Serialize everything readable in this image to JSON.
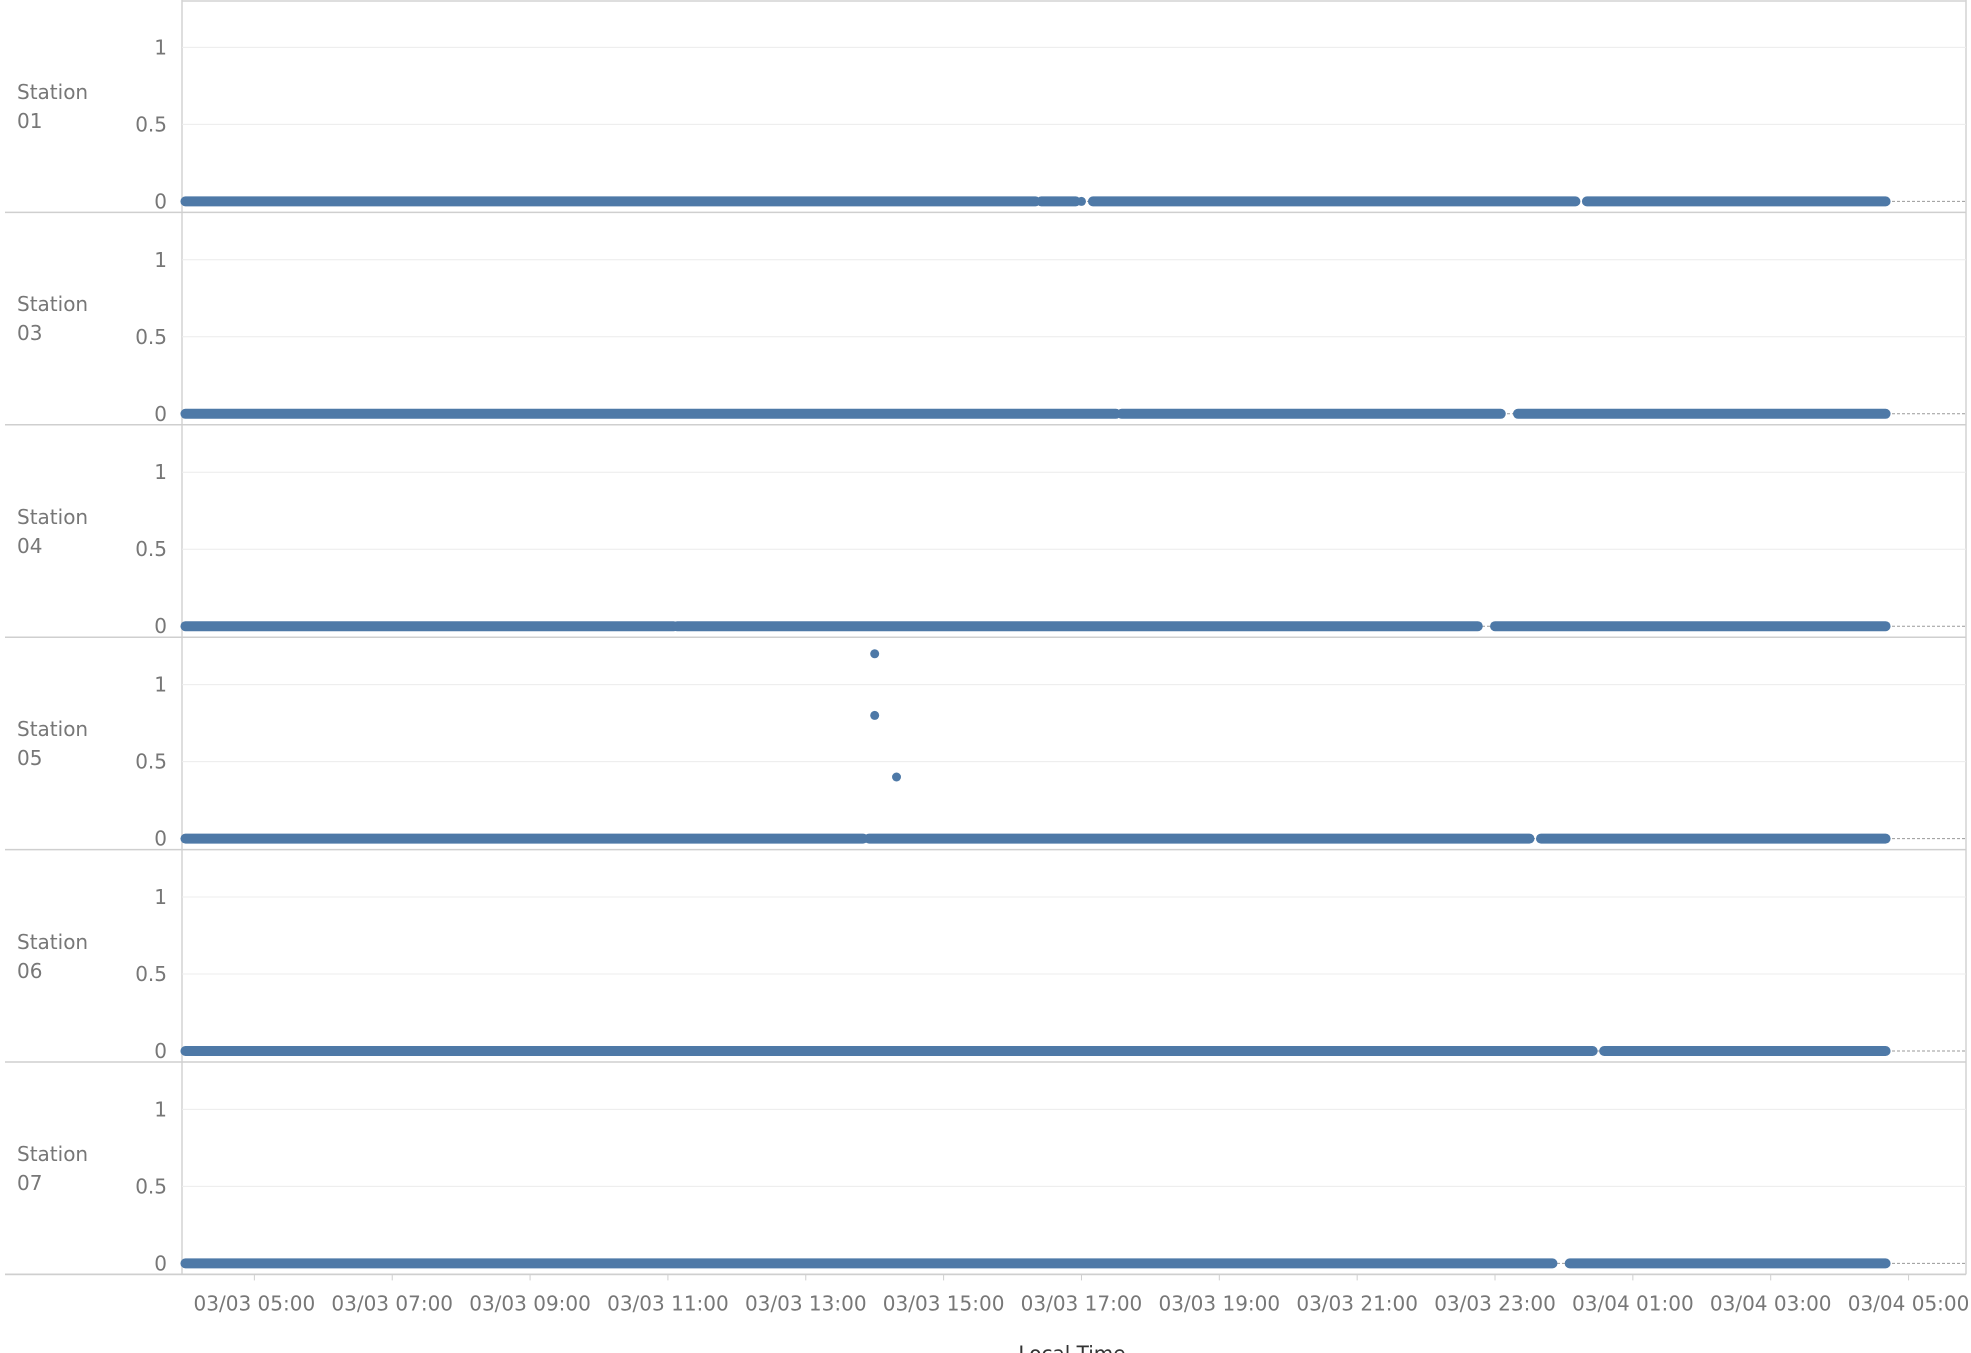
{
  "chart_data": {
    "type": "scatter",
    "title": "",
    "xlabel": "Local Time",
    "ylabel": "",
    "xlim": [
      "03/03 03:57",
      "03/04 05:50"
    ],
    "ylim": [
      0,
      1.25
    ],
    "x_ticks": [
      "03/03 05:00",
      "03/03 07:00",
      "03/03 09:00",
      "03/03 11:00",
      "03/03 13:00",
      "03/03 15:00",
      "03/03 17:00",
      "03/03 19:00",
      "03/03 21:00",
      "03/03 23:00",
      "03/04 01:00",
      "03/04 03:00",
      "03/04 05:00"
    ],
    "y_ticks": [
      1,
      0.5,
      0
    ],
    "grid": "horizontal",
    "color": "#4e79a7",
    "panels": [
      {
        "station": "Station 01",
        "zero_segments": [
          [
            "03/03 04:00",
            "03/03 16:20"
          ],
          [
            "03/03 16:25",
            "03/03 16:55"
          ],
          [
            "03/03 17:10",
            "03/04 00:10"
          ],
          [
            "03/04 00:20",
            "03/04 04:40"
          ]
        ],
        "points": [
          {
            "x": "03/03 17:00",
            "y": 0
          }
        ]
      },
      {
        "station": "Station 03",
        "zero_segments": [
          [
            "03/03 04:00",
            "03/03 17:30"
          ],
          [
            "03/03 17:35",
            "03/03 23:05"
          ],
          [
            "03/03 23:20",
            "03/04 04:40"
          ]
        ],
        "points": []
      },
      {
        "station": "Station 04",
        "zero_segments": [
          [
            "03/03 04:00",
            "03/03 11:05"
          ],
          [
            "03/03 11:08",
            "03/03 22:45"
          ],
          [
            "03/03 23:00",
            "03/04 04:40"
          ]
        ],
        "points": []
      },
      {
        "station": "Station 05",
        "zero_segments": [
          [
            "03/03 04:00",
            "03/03 13:50"
          ],
          [
            "03/03 13:55",
            "03/03 23:30"
          ],
          [
            "03/03 23:40",
            "03/04 04:40"
          ]
        ],
        "points": [
          {
            "x": "03/03 14:00",
            "y": 1.2
          },
          {
            "x": "03/03 14:00",
            "y": 0.8
          },
          {
            "x": "03/03 14:19",
            "y": 0.4
          }
        ]
      },
      {
        "station": "Station 06",
        "zero_segments": [
          [
            "03/03 04:00",
            "03/04 00:25"
          ],
          [
            "03/04 00:35",
            "03/04 04:40"
          ]
        ],
        "points": []
      },
      {
        "station": "Station 07",
        "zero_segments": [
          [
            "03/03 04:00",
            "03/03 23:50"
          ],
          [
            "03/04 00:05",
            "03/04 04:40"
          ]
        ],
        "points": []
      }
    ]
  }
}
